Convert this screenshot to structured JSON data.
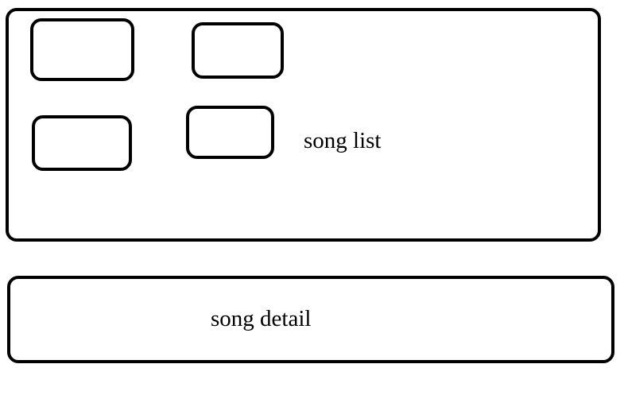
{
  "song_list": {
    "label": "song list",
    "items": [
      "",
      "",
      "",
      ""
    ]
  },
  "song_detail": {
    "label": "song detail"
  }
}
